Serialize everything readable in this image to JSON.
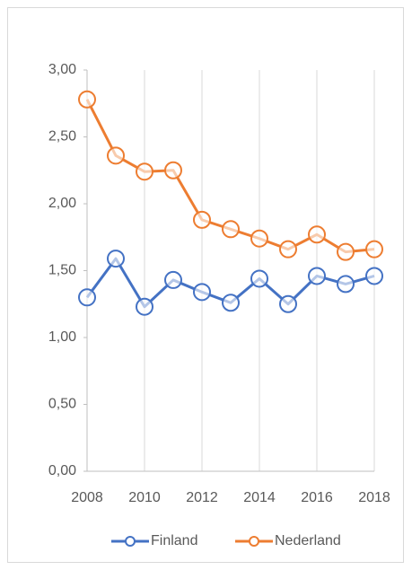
{
  "chart_data": {
    "type": "line",
    "x": [
      2008,
      2009,
      2010,
      2011,
      2012,
      2013,
      2014,
      2015,
      2016,
      2017,
      2018
    ],
    "series": [
      {
        "name": "Finland",
        "color": "#4472c4",
        "values": [
          1.3,
          1.59,
          1.23,
          1.43,
          1.34,
          1.26,
          1.44,
          1.25,
          1.46,
          1.4,
          1.46
        ]
      },
      {
        "name": "Nederland",
        "color": "#ed7d31",
        "values": [
          2.78,
          2.36,
          2.24,
          2.25,
          1.88,
          1.81,
          1.74,
          1.66,
          1.77,
          1.64,
          1.66
        ]
      }
    ],
    "xlim": [
      2008,
      2018
    ],
    "xticks": [
      2008,
      2010,
      2012,
      2014,
      2016,
      2018
    ],
    "ylim": [
      0,
      3
    ],
    "yticks": [
      {
        "value": 0,
        "label": "0,00"
      },
      {
        "value": 0.5,
        "label": "0,50"
      },
      {
        "value": 1,
        "label": "1,00"
      },
      {
        "value": 1.5,
        "label": "1,50"
      },
      {
        "value": 2,
        "label": "2,00"
      },
      {
        "value": 2.5,
        "label": "2,50"
      },
      {
        "value": 3,
        "label": "3,00"
      }
    ],
    "grid": "x",
    "legend": "bottom"
  }
}
